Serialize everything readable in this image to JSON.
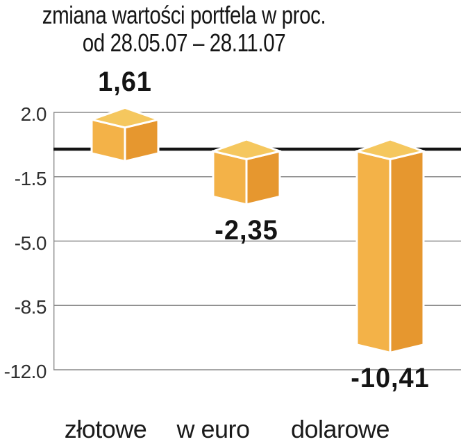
{
  "title": {
    "line1": "zmiana wartości portfela w proc.",
    "line2": "od 28.05.07 – 28.11.07"
  },
  "chart_data": {
    "type": "bar",
    "style": "3d-box-bars",
    "title": "zmiana wartości portfela w proc. od 28.05.07 – 28.11.07",
    "categories": [
      "złotowe",
      "w euro",
      "dolarowe"
    ],
    "values": [
      1.61,
      -2.35,
      -10.41
    ],
    "value_labels": [
      "1,61",
      "-2,35",
      "-10,41"
    ],
    "y_ticks": [
      2.0,
      -1.5,
      -5.0,
      -8.5,
      -12.0
    ],
    "y_tick_labels": [
      "2.0",
      "-1.5",
      "-5.0",
      "-8.5",
      "-12.0"
    ],
    "ylim": [
      -12.0,
      2.0
    ],
    "grid": true,
    "zero_line": true,
    "legend": "none",
    "colors": {
      "box_top": "#F5C75E",
      "box_left": "#F3B248",
      "box_right": "#E6972F",
      "box_edge": "#FFFFFF",
      "grid": "#8A8A8A",
      "zero_line": "#141414",
      "text": "#1A1A1A"
    }
  }
}
